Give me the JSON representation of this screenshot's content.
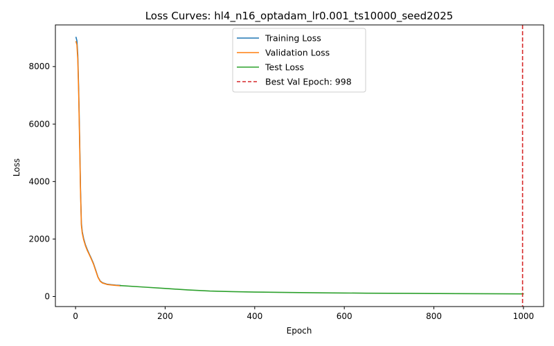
{
  "chart_data": {
    "type": "line",
    "title": "Loss Curves: hl4_n16_optadam_lr0.001_ts10000_seed2025",
    "xlabel": "Epoch",
    "ylabel": "Loss",
    "xlim": [
      -45,
      1045
    ],
    "ylim": [
      -350,
      9450
    ],
    "xticks": [
      0,
      200,
      400,
      600,
      800,
      1000
    ],
    "yticks": [
      0,
      2000,
      4000,
      6000,
      8000
    ],
    "grid": false,
    "legend_position": "top-center",
    "series": [
      {
        "name": "Training Loss",
        "color": "#1f77b4",
        "x": [
          1,
          3,
          5,
          7,
          9,
          11,
          13,
          15,
          18,
          22,
          26,
          30,
          35,
          40,
          45,
          50,
          55,
          60,
          70,
          80,
          90,
          100
        ],
        "y": [
          9020,
          8900,
          8400,
          7200,
          5600,
          3800,
          2550,
          2250,
          2020,
          1800,
          1640,
          1500,
          1330,
          1150,
          920,
          680,
          540,
          480,
          430,
          410,
          395,
          385
        ]
      },
      {
        "name": "Validation Loss",
        "color": "#ff7f0e",
        "x": [
          1,
          3,
          5,
          7,
          9,
          11,
          13,
          15,
          18,
          22,
          26,
          30,
          35,
          40,
          45,
          50,
          55,
          60,
          70,
          80,
          90,
          100
        ],
        "y": [
          8870,
          8760,
          8250,
          7050,
          5450,
          3700,
          2480,
          2200,
          1980,
          1770,
          1610,
          1480,
          1310,
          1130,
          900,
          670,
          530,
          470,
          420,
          400,
          385,
          375
        ]
      },
      {
        "name": "Test Loss",
        "color": "#2ca02c",
        "x": [
          100,
          150,
          200,
          250,
          300,
          350,
          400,
          450,
          500,
          550,
          600,
          650,
          700,
          750,
          800,
          850,
          900,
          950,
          1000
        ],
        "y": [
          380,
          330,
          280,
          230,
          190,
          170,
          155,
          145,
          135,
          128,
          122,
          116,
          112,
          108,
          104,
          100,
          97,
          94,
          92
        ]
      }
    ],
    "best_epoch_line": {
      "name": "Best Val Epoch: 998",
      "x": 998,
      "color": "#d62728"
    }
  }
}
